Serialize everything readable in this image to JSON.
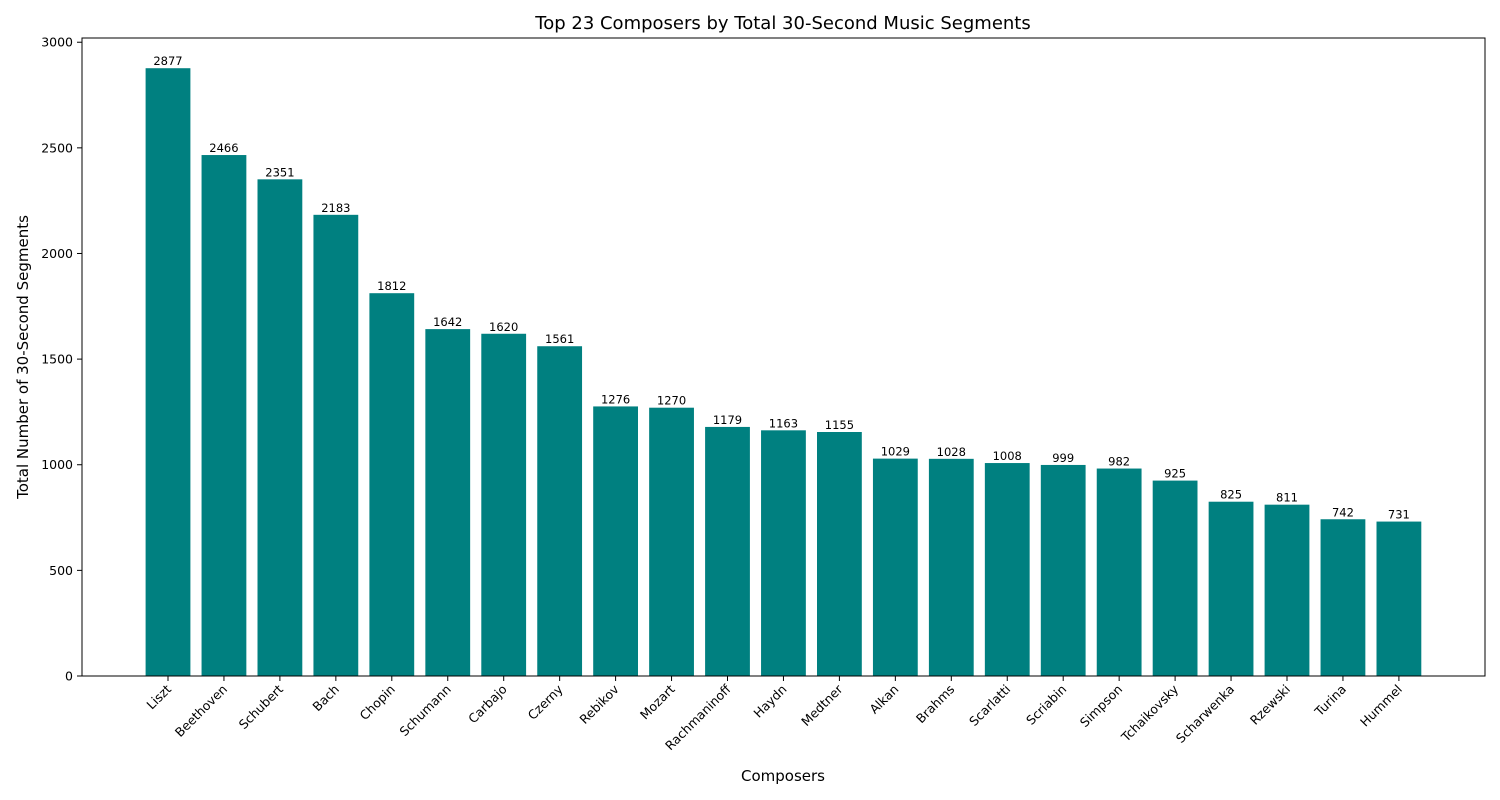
{
  "chart_data": {
    "type": "bar",
    "title": "Top 23 Composers by Total 30-Second Music Segments",
    "xlabel": "Composers",
    "ylabel": "Total Number of 30-Second Segments",
    "categories": [
      "Liszt",
      "Beethoven",
      "Schubert",
      "Bach",
      "Chopin",
      "Schumann",
      "Carbajo",
      "Czerny",
      "Rebikov",
      "Mozart",
      "Rachmaninoff",
      "Haydn",
      "Medtner",
      "Alkan",
      "Brahms",
      "Scarlatti",
      "Scriabin",
      "Simpson",
      "Tchaikovsky",
      "Scharwenka",
      "Rzewski",
      "Turina",
      "Hummel"
    ],
    "values": [
      2877,
      2466,
      2351,
      2183,
      1812,
      1642,
      1620,
      1561,
      1276,
      1270,
      1179,
      1163,
      1155,
      1029,
      1028,
      1008,
      999,
      982,
      925,
      825,
      811,
      742,
      731
    ],
    "ylim": [
      0,
      3020
    ],
    "yticks": [
      0,
      500,
      1000,
      1500,
      2000,
      2500,
      3000
    ],
    "grid": false,
    "bar_color": "#008080",
    "data_labels": true
  }
}
